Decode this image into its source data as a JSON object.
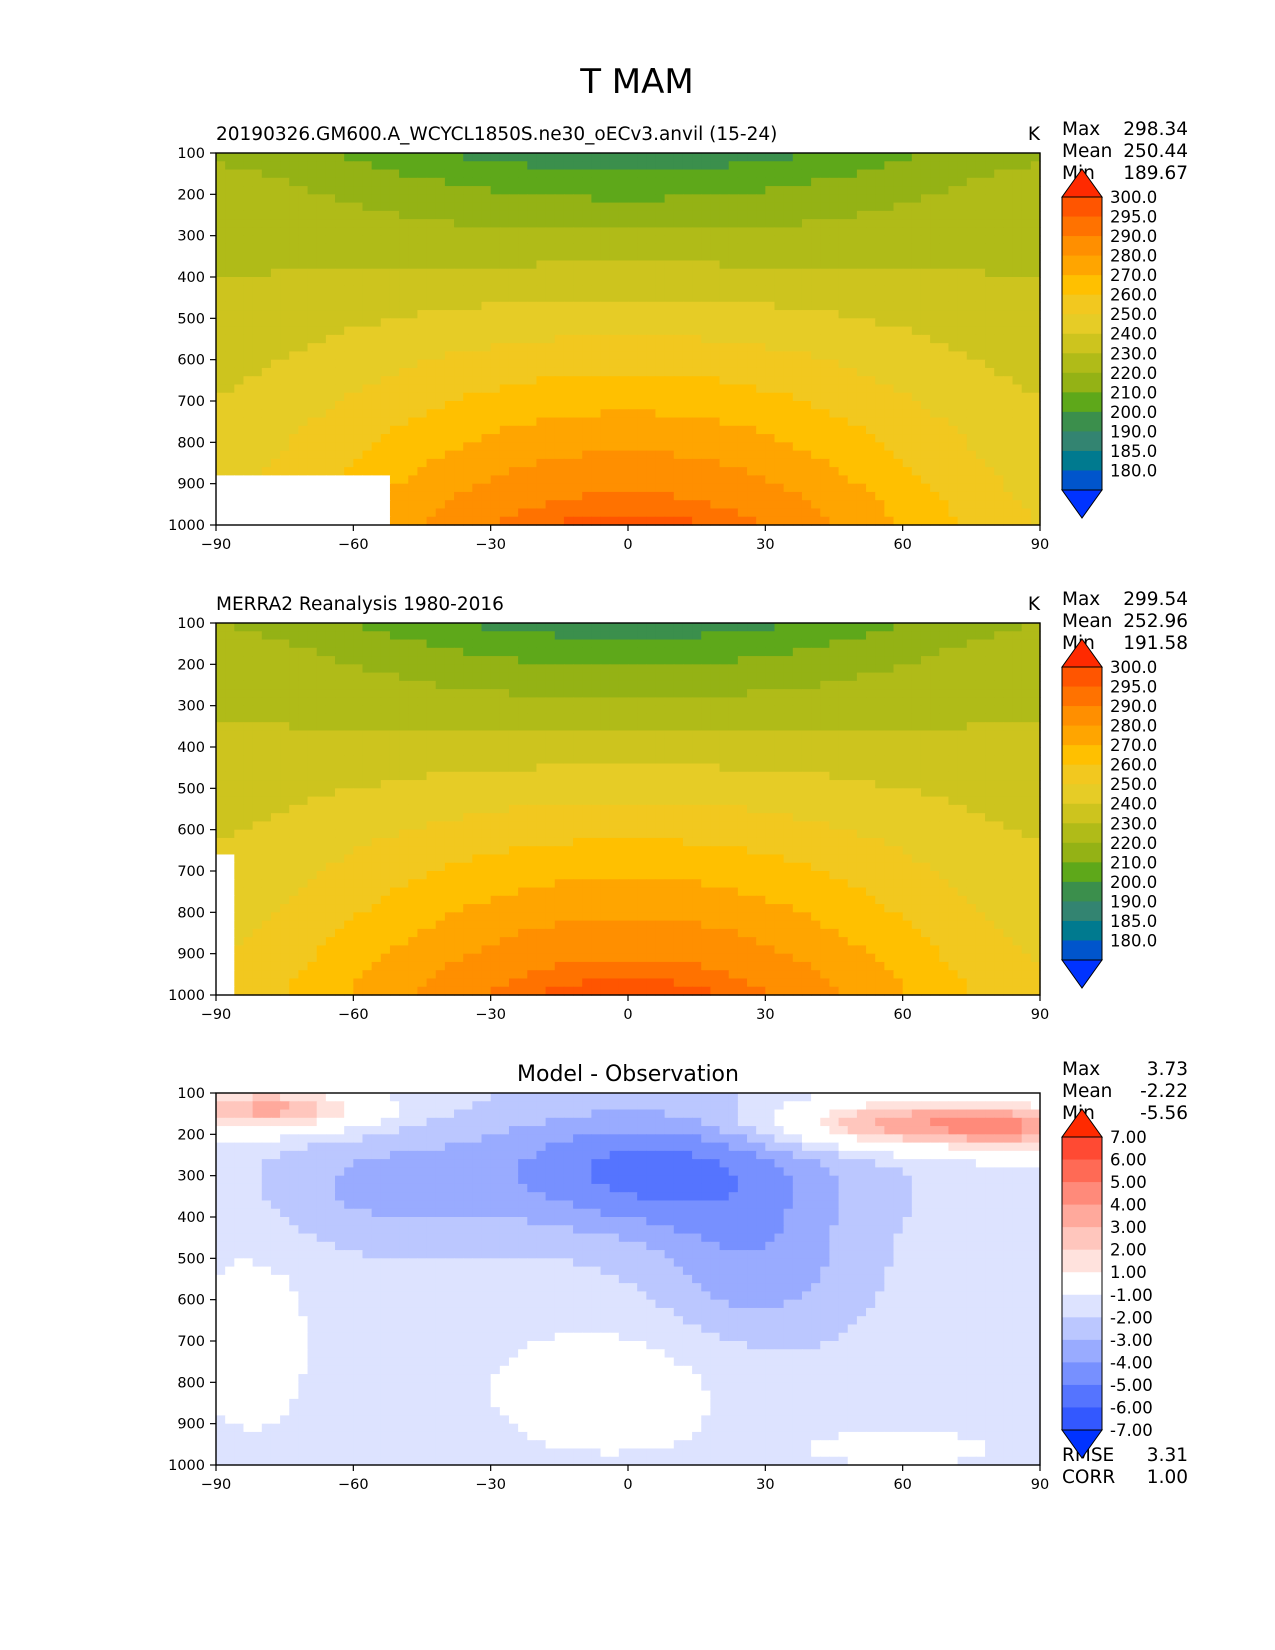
{
  "figure_title": "T MAM",
  "chart_data": [
    {
      "type": "heatmap",
      "title_left": "20190326.GM600.A_WCYCL1850S.ne30_oECv3.anvil (15-24)",
      "units": "K",
      "xlabel": "",
      "ylabel": "",
      "xlim": [
        -90,
        90
      ],
      "ylim": [
        1000,
        100
      ],
      "x_ticks": [
        "−90",
        "−60",
        "−30",
        "0",
        "30",
        "60",
        "90"
      ],
      "y_ticks": [
        "100",
        "200",
        "300",
        "400",
        "500",
        "600",
        "700",
        "800",
        "900",
        "1000"
      ],
      "stats": [
        {
          "label": "Max",
          "value": "298.34"
        },
        {
          "label": "Mean",
          "value": "250.44"
        },
        {
          "label": "Min",
          "value": "189.67"
        }
      ],
      "colorbar": {
        "levels": [
          "300.0",
          "295.0",
          "290.0",
          "280.0",
          "270.0",
          "260.0",
          "250.0",
          "240.0",
          "230.0",
          "220.0",
          "210.0",
          "200.0",
          "190.0",
          "185.0",
          "180.0"
        ],
        "colors": [
          "#ff2a00",
          "#ff5500",
          "#ff7200",
          "#ff8f00",
          "#ffa500",
          "#ffc000",
          "#f2c81f",
          "#e6cc26",
          "#cdc41e",
          "#b0bb18",
          "#94b215",
          "#5ea81a",
          "#3b8f4c",
          "#338471",
          "#007a8f",
          "#0055cc",
          "#0033ff"
        ]
      },
      "field": {
        "min": 189.67,
        "max": 298.34,
        "surface_gap_lat": -52,
        "equator_surface": 298,
        "equator_top": 192,
        "pole_surface": 250,
        "pole_top": 217
      }
    },
    {
      "type": "heatmap",
      "title_left": "MERRA2 Reanalysis 1980-2016",
      "units": "K",
      "xlabel": "",
      "ylabel": "",
      "xlim": [
        -90,
        90
      ],
      "ylim": [
        1000,
        100
      ],
      "x_ticks": [
        "−90",
        "−60",
        "−30",
        "0",
        "30",
        "60",
        "90"
      ],
      "y_ticks": [
        "100",
        "200",
        "300",
        "400",
        "500",
        "600",
        "700",
        "800",
        "900",
        "1000"
      ],
      "stats": [
        {
          "label": "Max",
          "value": "299.54"
        },
        {
          "label": "Mean",
          "value": "252.96"
        },
        {
          "label": "Min",
          "value": "191.58"
        }
      ],
      "colorbar": {
        "levels": [
          "300.0",
          "295.0",
          "290.0",
          "280.0",
          "270.0",
          "260.0",
          "250.0",
          "240.0",
          "230.0",
          "220.0",
          "210.0",
          "200.0",
          "190.0",
          "185.0",
          "180.0"
        ],
        "colors": [
          "#ff2a00",
          "#ff5500",
          "#ff7200",
          "#ff8f00",
          "#ffa500",
          "#ffc000",
          "#f2c81f",
          "#e6cc26",
          "#cdc41e",
          "#b0bb18",
          "#94b215",
          "#5ea81a",
          "#3b8f4c",
          "#338471",
          "#007a8f",
          "#0055cc",
          "#0033ff"
        ]
      },
      "field": {
        "min": 191.58,
        "max": 299.54,
        "surface_gap_lat": -86,
        "equator_surface": 299,
        "equator_top": 193,
        "pole_surface": 252,
        "pole_top": 219
      }
    },
    {
      "type": "heatmap",
      "title_center": "Model - Observation",
      "units": "",
      "xlabel": "",
      "ylabel": "",
      "xlim": [
        -90,
        90
      ],
      "ylim": [
        1000,
        100
      ],
      "x_ticks": [
        "−90",
        "−60",
        "−30",
        "0",
        "30",
        "60",
        "90"
      ],
      "y_ticks": [
        "100",
        "200",
        "300",
        "400",
        "500",
        "600",
        "700",
        "800",
        "900",
        "1000"
      ],
      "stats": [
        {
          "label": "Max",
          "value": "3.73"
        },
        {
          "label": "Mean",
          "value": "-2.22"
        },
        {
          "label": "Min",
          "value": "-5.56"
        }
      ],
      "extra_stats": [
        {
          "label": "RMSE",
          "value": "3.31"
        },
        {
          "label": "CORR",
          "value": "1.00"
        }
      ],
      "colorbar": {
        "levels": [
          "7.00",
          "6.00",
          "5.00",
          "4.00",
          "3.00",
          "2.00",
          "1.00",
          "-1.00",
          "-2.00",
          "-3.00",
          "-4.00",
          "-5.00",
          "-6.00",
          "-7.00"
        ],
        "colors": [
          "#ff2a00",
          "#ff4a33",
          "#ff6a55",
          "#ff8a7a",
          "#ffa99c",
          "#ffc6bd",
          "#ffe2dd",
          "#ffffff",
          "#dde3ff",
          "#bbc7ff",
          "#99abff",
          "#7790ff",
          "#5574ff",
          "#3358ff",
          "#0033ff"
        ]
      },
      "field": {
        "min": -5.56,
        "max": 3.73
      }
    }
  ]
}
